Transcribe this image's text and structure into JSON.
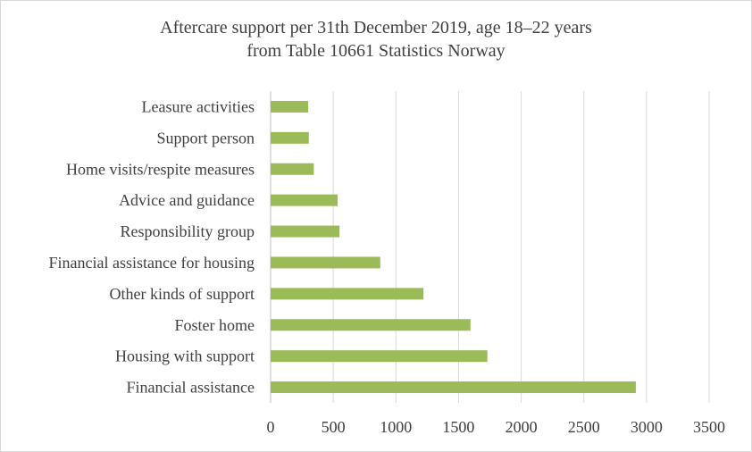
{
  "chart_data": {
    "type": "bar",
    "orientation": "horizontal",
    "title": "Aftercare support per 31th December 2019, age 18–22 years",
    "subtitle": "from Table 10661 Statistics Norway",
    "categories": [
      "Leasure activities",
      "Support person",
      "Home visits/respite measures",
      "Advice and guidance",
      "Responsibility group",
      "Financial assistance for housing",
      "Other kinds of support",
      "Foster home",
      "Housing with support",
      "Financial assistance"
    ],
    "values": [
      300,
      305,
      345,
      535,
      550,
      875,
      1220,
      1595,
      1730,
      2915
    ],
    "xlim": [
      0,
      3500
    ],
    "xticks": [
      "0",
      "500",
      "1000",
      "1500",
      "2000",
      "2500",
      "3000",
      "3500"
    ],
    "grid": "vertical",
    "bar_color": "#9bbb59",
    "legend": "none"
  }
}
